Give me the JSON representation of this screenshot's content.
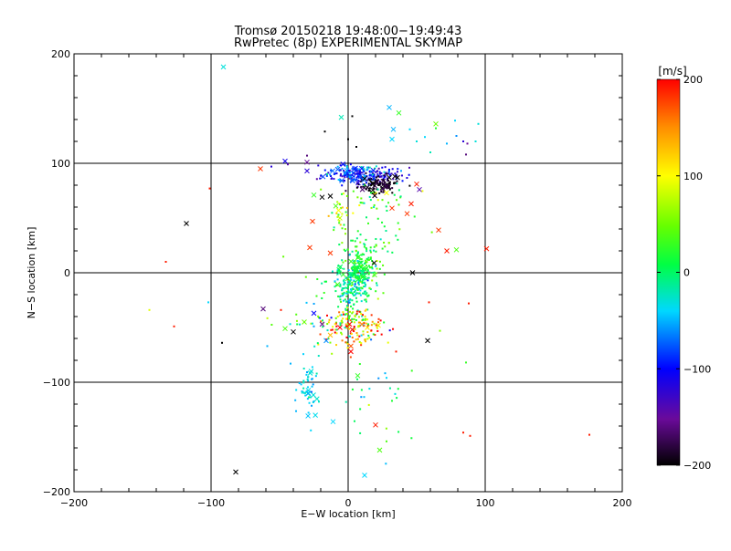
{
  "chart_data": {
    "type": "scatter",
    "title": "Tromsø 20150218 19:48:00−19:49:43",
    "subtitle": "RwPretec (8p) EXPERIMENTAL SKYMAP",
    "xlabel": "E−W location [km]",
    "ylabel": "N−S location [km]",
    "xlim": [
      -200,
      200
    ],
    "ylim": [
      -200,
      200
    ],
    "x_ticks": [
      "−200",
      "−100",
      "0",
      "100",
      "200"
    ],
    "y_ticks": [
      "−200",
      "−100",
      "0",
      "100",
      "200"
    ],
    "x_tick_values": [
      -200,
      -100,
      0,
      100,
      200
    ],
    "y_tick_values": [
      -200,
      -100,
      0,
      100,
      200
    ],
    "grid": true,
    "colorbar": {
      "label": "[m/s]",
      "range": [
        -200,
        200
      ],
      "ticks": [
        "200",
        "100",
        "0",
        "−100",
        "−200"
      ],
      "tick_values": [
        200,
        100,
        0,
        -100,
        -200
      ],
      "colormap": "rainbow: black(−200) → purple → blue(−100) → cyan → green(0) → yellow(100) → orange → red(200)"
    },
    "marker_legend": "x = large-marker points, dots = small points; color encodes velocity in m/s",
    "points": [
      {
        "x": -91,
        "y": 188,
        "v": -30,
        "m": "x"
      },
      {
        "x": -118,
        "y": 45,
        "v": -200,
        "m": "x"
      },
      {
        "x": -82,
        "y": -182,
        "v": -200,
        "m": "x"
      },
      {
        "x": -64,
        "y": 95,
        "v": 180,
        "m": "x"
      },
      {
        "x": -46,
        "y": 102,
        "v": -110,
        "m": "x"
      },
      {
        "x": -30,
        "y": 101,
        "v": -150,
        "m": "x"
      },
      {
        "x": -30,
        "y": 93,
        "v": -120,
        "m": "x"
      },
      {
        "x": -25,
        "y": 71,
        "v": 30,
        "m": "x"
      },
      {
        "x": -19,
        "y": 69,
        "v": -200,
        "m": "x"
      },
      {
        "x": -13,
        "y": 70,
        "v": -200,
        "m": "x"
      },
      {
        "x": -26,
        "y": 47,
        "v": 180,
        "m": "x"
      },
      {
        "x": -28,
        "y": 23,
        "v": 180,
        "m": "x"
      },
      {
        "x": -13,
        "y": 18,
        "v": 180,
        "m": "x"
      },
      {
        "x": -9,
        "y": 61,
        "v": 40,
        "m": "x"
      },
      {
        "x": -7,
        "y": 57,
        "v": 100,
        "m": "x"
      },
      {
        "x": -6,
        "y": 50,
        "v": 80,
        "m": "x"
      },
      {
        "x": -5,
        "y": 142,
        "v": -20,
        "m": "x"
      },
      {
        "x": 30,
        "y": 151,
        "v": -50,
        "m": "x"
      },
      {
        "x": 37,
        "y": 146,
        "v": 30,
        "m": "x"
      },
      {
        "x": 33,
        "y": 131,
        "v": -50,
        "m": "x"
      },
      {
        "x": 32,
        "y": 122,
        "v": -40,
        "m": "x"
      },
      {
        "x": 64,
        "y": 136,
        "v": 50,
        "m": "x"
      },
      {
        "x": 30,
        "y": 87,
        "v": -200,
        "m": "x"
      },
      {
        "x": 36,
        "y": 87,
        "v": -200,
        "m": "x"
      },
      {
        "x": 26,
        "y": 81,
        "v": -180,
        "m": "x"
      },
      {
        "x": 18,
        "y": 81,
        "v": -200,
        "m": "x"
      },
      {
        "x": 12,
        "y": 86,
        "v": -200,
        "m": "x"
      },
      {
        "x": 28,
        "y": 73,
        "v": 100,
        "m": "x"
      },
      {
        "x": 50,
        "y": 81,
        "v": 190,
        "m": "x"
      },
      {
        "x": 52,
        "y": 76,
        "v": -140,
        "m": "x"
      },
      {
        "x": 32,
        "y": 59,
        "v": 180,
        "m": "x"
      },
      {
        "x": 46,
        "y": 63,
        "v": 190,
        "m": "x"
      },
      {
        "x": 43,
        "y": 54,
        "v": 180,
        "m": "x"
      },
      {
        "x": 66,
        "y": 39,
        "v": 180,
        "m": "x"
      },
      {
        "x": 72,
        "y": 20,
        "v": 190,
        "m": "x"
      },
      {
        "x": 79,
        "y": 21,
        "v": 40,
        "m": "x"
      },
      {
        "x": 101,
        "y": 22,
        "v": 190,
        "m": "x"
      },
      {
        "x": 19,
        "y": 9,
        "v": -200,
        "m": "x"
      },
      {
        "x": 47,
        "y": 0,
        "v": -200,
        "m": "x"
      },
      {
        "x": -62,
        "y": -33,
        "v": -160,
        "m": "x"
      },
      {
        "x": -46,
        "y": -51,
        "v": 40,
        "m": "x"
      },
      {
        "x": -40,
        "y": -54,
        "v": -200,
        "m": "x"
      },
      {
        "x": -32,
        "y": -45,
        "v": 50,
        "m": "x"
      },
      {
        "x": -25,
        "y": -37,
        "v": -100,
        "m": "x"
      },
      {
        "x": -19,
        "y": -47,
        "v": -150,
        "m": "x"
      },
      {
        "x": -16,
        "y": -62,
        "v": -60,
        "m": "x"
      },
      {
        "x": -13,
        "y": -57,
        "v": 130,
        "m": "x"
      },
      {
        "x": -6,
        "y": -50,
        "v": 200,
        "m": "x"
      },
      {
        "x": 1,
        "y": -47,
        "v": 200,
        "m": "x"
      },
      {
        "x": 3,
        "y": -52,
        "v": 200,
        "m": "x"
      },
      {
        "x": 2,
        "y": -67,
        "v": 170,
        "m": "x"
      },
      {
        "x": 2,
        "y": -72,
        "v": 200,
        "m": "x"
      },
      {
        "x": 10,
        "y": -47,
        "v": 150,
        "m": "x"
      },
      {
        "x": 14,
        "y": -50,
        "v": 110,
        "m": "x"
      },
      {
        "x": 22,
        "y": -48,
        "v": 110,
        "m": "x"
      },
      {
        "x": 58,
        "y": -62,
        "v": -200,
        "m": "x"
      },
      {
        "x": 7,
        "y": -94,
        "v": 30,
        "m": "x"
      },
      {
        "x": -27,
        "y": -90,
        "v": -30,
        "m": "x"
      },
      {
        "x": -11,
        "y": -136,
        "v": -40,
        "m": "x"
      },
      {
        "x": 20,
        "y": -139,
        "v": 190,
        "m": "x"
      },
      {
        "x": 23,
        "y": -162,
        "v": 40,
        "m": "x"
      },
      {
        "x": 12,
        "y": -185,
        "v": -40,
        "m": "x"
      },
      {
        "x": -101,
        "y": 77,
        "v": 190,
        "m": "."
      },
      {
        "x": -133,
        "y": 10,
        "v": 190,
        "m": "."
      },
      {
        "x": -145,
        "y": -34,
        "v": 90,
        "m": "."
      },
      {
        "x": -127,
        "y": -49,
        "v": 190,
        "m": "."
      },
      {
        "x": -102,
        "y": -27,
        "v": -40,
        "m": "."
      },
      {
        "x": -92,
        "y": -64,
        "v": -200,
        "m": "."
      },
      {
        "x": -49,
        "y": -34,
        "v": 190,
        "m": "."
      },
      {
        "x": -59,
        "y": -67,
        "v": -50,
        "m": "."
      },
      {
        "x": -42,
        "y": -83,
        "v": -50,
        "m": "."
      },
      {
        "x": -17,
        "y": 129,
        "v": -200,
        "m": "."
      },
      {
        "x": 3,
        "y": 143,
        "v": -200,
        "m": "."
      },
      {
        "x": 0,
        "y": 122,
        "v": -200,
        "m": "."
      },
      {
        "x": 6,
        "y": 115,
        "v": -200,
        "m": "."
      },
      {
        "x": 64,
        "y": 132,
        "v": 20,
        "m": "."
      },
      {
        "x": 78,
        "y": 139,
        "v": -40,
        "m": "."
      },
      {
        "x": 84,
        "y": 120,
        "v": -120,
        "m": "."
      },
      {
        "x": 87,
        "y": 118,
        "v": -150,
        "m": "."
      },
      {
        "x": 93,
        "y": 120,
        "v": -30,
        "m": "."
      },
      {
        "x": 95,
        "y": 136,
        "v": -30,
        "m": "."
      },
      {
        "x": 86,
        "y": 108,
        "v": -160,
        "m": "."
      },
      {
        "x": 79,
        "y": 125,
        "v": -60,
        "m": "."
      },
      {
        "x": 45,
        "y": 131,
        "v": -40,
        "m": "."
      },
      {
        "x": 50,
        "y": 120,
        "v": -30,
        "m": "."
      },
      {
        "x": 72,
        "y": 118,
        "v": -50,
        "m": "."
      },
      {
        "x": 56,
        "y": 124,
        "v": -40,
        "m": "."
      },
      {
        "x": 60,
        "y": 110,
        "v": -20,
        "m": "."
      },
      {
        "x": 88,
        "y": -28,
        "v": 190,
        "m": "."
      },
      {
        "x": 86,
        "y": -82,
        "v": 30,
        "m": "."
      },
      {
        "x": 84,
        "y": -146,
        "v": 190,
        "m": "."
      },
      {
        "x": 89,
        "y": -149,
        "v": 190,
        "m": "."
      },
      {
        "x": 176,
        "y": -148,
        "v": 190,
        "m": "."
      },
      {
        "x": 59,
        "y": -27,
        "v": 190,
        "m": "."
      },
      {
        "x": 67,
        "y": -53,
        "v": 60,
        "m": "."
      },
      {
        "x": 35,
        "y": -72,
        "v": 190,
        "m": "."
      },
      {
        "x": 28,
        "y": -96,
        "v": -40,
        "m": "."
      },
      {
        "x": 32,
        "y": -117,
        "v": 20,
        "m": "."
      },
      {
        "x": 28,
        "y": -154,
        "v": 40,
        "m": "."
      },
      {
        "x": -30,
        "y": 107,
        "v": -160,
        "m": "."
      },
      {
        "x": -44,
        "y": 99,
        "v": -140,
        "m": "."
      },
      {
        "x": -56,
        "y": 97,
        "v": -120,
        "m": "."
      }
    ],
    "clusters": [
      {
        "cx": 12,
        "cy": 89,
        "sx": 16,
        "sy": 4,
        "n": 160,
        "v": -110,
        "vs": 20,
        "m": "."
      },
      {
        "cx": 22,
        "cy": 81,
        "sx": 7,
        "sy": 4,
        "n": 90,
        "v": -195,
        "vs": 10,
        "m": "."
      },
      {
        "cx": 3,
        "cy": 91,
        "sx": 11,
        "sy": 4,
        "n": 40,
        "v": -50,
        "vs": 20,
        "m": "."
      },
      {
        "cx": 20,
        "cy": 70,
        "sx": 14,
        "sy": 6,
        "n": 30,
        "v": 40,
        "vs": 40,
        "m": "."
      },
      {
        "cx": -6,
        "cy": 58,
        "sx": 4,
        "sy": 10,
        "n": 25,
        "v": 70,
        "vs": 40,
        "m": "."
      },
      {
        "cx": 9,
        "cy": 5,
        "sx": 7,
        "sy": 14,
        "n": 170,
        "v": 15,
        "vs": 25,
        "m": "."
      },
      {
        "cx": 2,
        "cy": -12,
        "sx": 6,
        "sy": 10,
        "n": 150,
        "v": -20,
        "vs": 25,
        "m": "."
      },
      {
        "cx": 4,
        "cy": -45,
        "sx": 11,
        "sy": 6,
        "n": 110,
        "v": 100,
        "vs": 70,
        "m": "."
      },
      {
        "cx": 2,
        "cy": -58,
        "sx": 10,
        "sy": 8,
        "n": 45,
        "v": 130,
        "vs": 50,
        "m": "."
      },
      {
        "cx": -28,
        "cy": -108,
        "sx": 4,
        "sy": 14,
        "n": 45,
        "v": -40,
        "vs": 15,
        "m": "."
      },
      {
        "cx": 25,
        "cy": 30,
        "sx": 14,
        "sy": 22,
        "n": 40,
        "v": 20,
        "vs": 40,
        "m": "."
      },
      {
        "cx": -20,
        "cy": -25,
        "sx": 16,
        "sy": 18,
        "n": 40,
        "v": 10,
        "vs": 45,
        "m": "."
      },
      {
        "cx": 20,
        "cy": -100,
        "sx": 14,
        "sy": 28,
        "n": 30,
        "v": 0,
        "vs": 40,
        "m": "."
      },
      {
        "cx": 5,
        "cy": 0,
        "sx": 5,
        "sy": 7,
        "n": 28,
        "v": 10,
        "vs": 15,
        "m": "x"
      },
      {
        "cx": 3,
        "cy": 88,
        "sx": 12,
        "sy": 4,
        "n": 22,
        "v": -90,
        "vs": 15,
        "m": "x"
      },
      {
        "cx": 22,
        "cy": 80,
        "sx": 6,
        "sy": 4,
        "n": 14,
        "v": -190,
        "vs": 10,
        "m": "x"
      },
      {
        "cx": -28,
        "cy": -112,
        "sx": 3,
        "sy": 10,
        "n": 8,
        "v": -40,
        "vs": 10,
        "m": "x"
      }
    ]
  }
}
